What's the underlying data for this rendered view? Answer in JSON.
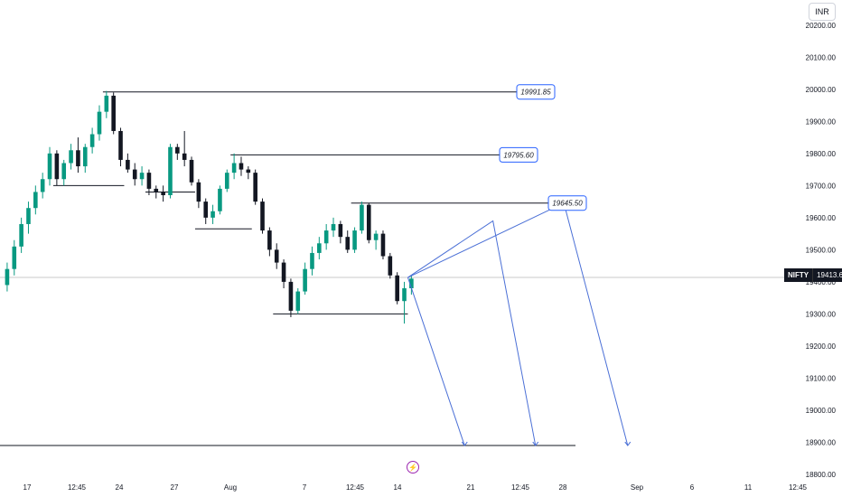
{
  "header": {
    "currency": "INR"
  },
  "price_tag": {
    "symbol": "NIFTY",
    "value": "19413.65"
  },
  "colors": {
    "up": "#089981",
    "down": "#131722",
    "projection": "#4a6fd6",
    "level": "#131722",
    "label_border": "#2962ff"
  },
  "icons": {
    "event_marker": "lightning-icon"
  },
  "chart_data": {
    "type": "candlestick",
    "ylim": [
      18800,
      20250
    ],
    "y_ticks": [
      20200,
      20100,
      20000,
      19900,
      19800,
      19700,
      19600,
      19500,
      19400,
      19300,
      19200,
      19100,
      19000,
      18900,
      18800
    ],
    "x_ticks": [
      "17",
      "12:45",
      "24",
      "27",
      "Aug",
      "7",
      "12:45",
      "14",
      "21",
      "12:45",
      "28",
      "Sep",
      "6",
      "11",
      "12:45"
    ],
    "current_price": 19413.65,
    "resistance_levels": [
      {
        "label": "19991.85",
        "value": 19991.85
      },
      {
        "label": "19795.60",
        "value": 19795.6
      },
      {
        "label": "19645.50",
        "value": 19645.5
      }
    ],
    "support_levels": [
      19700,
      19680,
      19565,
      19300
    ],
    "target_level": 18890,
    "series": [
      [
        19390,
        19460,
        19370,
        19440
      ],
      [
        19440,
        19530,
        19420,
        19510
      ],
      [
        19510,
        19600,
        19490,
        19580
      ],
      [
        19580,
        19650,
        19550,
        19630
      ],
      [
        19630,
        19700,
        19610,
        19680
      ],
      [
        19680,
        19740,
        19660,
        19720
      ],
      [
        19720,
        19820,
        19700,
        19800
      ],
      [
        19800,
        19810,
        19700,
        19720
      ],
      [
        19720,
        19780,
        19700,
        19770
      ],
      [
        19770,
        19830,
        19750,
        19810
      ],
      [
        19810,
        19850,
        19740,
        19760
      ],
      [
        19760,
        19830,
        19740,
        19820
      ],
      [
        19820,
        19880,
        19800,
        19860
      ],
      [
        19860,
        19950,
        19840,
        19930
      ],
      [
        19930,
        19995,
        19910,
        19980
      ],
      [
        19980,
        19990,
        19860,
        19870
      ],
      [
        19870,
        19880,
        19760,
        19780
      ],
      [
        19780,
        19800,
        19740,
        19750
      ],
      [
        19750,
        19770,
        19700,
        19720
      ],
      [
        19720,
        19760,
        19700,
        19740
      ],
      [
        19740,
        19750,
        19670,
        19690
      ],
      [
        19690,
        19700,
        19660,
        19680
      ],
      [
        19680,
        19700,
        19650,
        19670
      ],
      [
        19670,
        19830,
        19660,
        19820
      ],
      [
        19820,
        19830,
        19780,
        19800
      ],
      [
        19800,
        19870,
        19760,
        19780
      ],
      [
        19780,
        19790,
        19700,
        19710
      ],
      [
        19710,
        19720,
        19630,
        19650
      ],
      [
        19650,
        19660,
        19580,
        19600
      ],
      [
        19600,
        19640,
        19580,
        19620
      ],
      [
        19620,
        19700,
        19610,
        19690
      ],
      [
        19690,
        19750,
        19680,
        19740
      ],
      [
        19740,
        19800,
        19720,
        19770
      ],
      [
        19770,
        19790,
        19730,
        19750
      ],
      [
        19750,
        19760,
        19720,
        19740
      ],
      [
        19740,
        19750,
        19640,
        19650
      ],
      [
        19650,
        19660,
        19550,
        19560
      ],
      [
        19560,
        19570,
        19480,
        19500
      ],
      [
        19500,
        19520,
        19440,
        19460
      ],
      [
        19460,
        19470,
        19380,
        19400
      ],
      [
        19400,
        19410,
        19290,
        19310
      ],
      [
        19310,
        19380,
        19300,
        19370
      ],
      [
        19370,
        19460,
        19360,
        19440
      ],
      [
        19440,
        19510,
        19420,
        19490
      ],
      [
        19490,
        19540,
        19470,
        19520
      ],
      [
        19520,
        19580,
        19500,
        19560
      ],
      [
        19560,
        19600,
        19540,
        19580
      ],
      [
        19580,
        19590,
        19520,
        19540
      ],
      [
        19540,
        19560,
        19490,
        19500
      ],
      [
        19500,
        19570,
        19490,
        19560
      ],
      [
        19560,
        19650,
        19550,
        19640
      ],
      [
        19640,
        19645,
        19520,
        19530
      ],
      [
        19530,
        19560,
        19500,
        19550
      ],
      [
        19550,
        19560,
        19470,
        19480
      ],
      [
        19480,
        19490,
        19410,
        19420
      ],
      [
        19420,
        19430,
        19330,
        19340
      ],
      [
        19340,
        19400,
        19270,
        19380
      ],
      [
        19380,
        19420,
        19360,
        19410
      ]
    ],
    "projections": [
      {
        "from": [
          57,
          19413.65
        ],
        "via": [
          69,
          19590
        ],
        "to": [
          75,
          18890
        ]
      },
      {
        "from": [
          57,
          19413.65
        ],
        "via": [
          79,
          19645.5
        ],
        "to": [
          88,
          18890
        ]
      },
      {
        "from": [
          57,
          19413.65
        ],
        "to": [
          65,
          18890
        ]
      }
    ]
  }
}
